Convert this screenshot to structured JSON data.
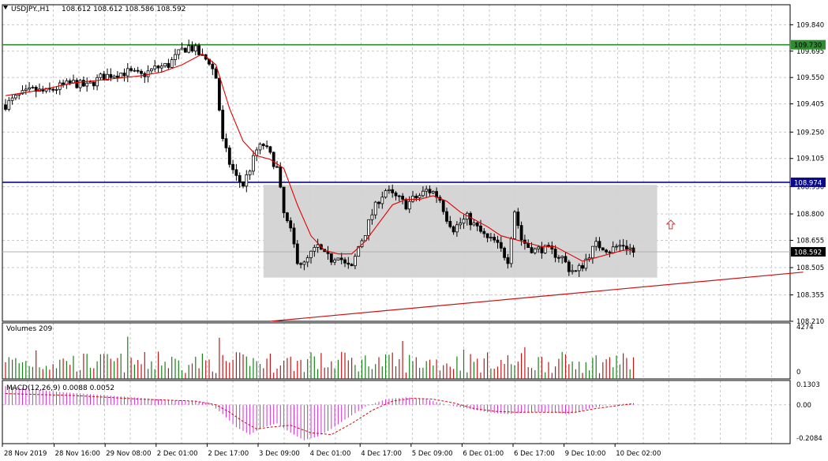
{
  "header": {
    "symbol": "USDJPY.,H1",
    "ohlc": "108.612 108.612 108.586 108.592",
    "icon": "collapse-triangle-icon"
  },
  "colors": {
    "background": "#ffffff",
    "grid": "#c8c8c8",
    "candle": "#000000",
    "ma": "#e60000",
    "resistance": "#2e8b2e",
    "support": "#0a0a8c",
    "trend": "#cc1111",
    "box": "#d3d3d3",
    "vol_up": "#1a7f1a",
    "vol_down": "#c01818",
    "macd": "#cc33cc",
    "signal": "#cc1111"
  },
  "chart_data": [
    {
      "type": "candlestick",
      "name": "price",
      "ylim": [
        108.21,
        109.95
      ],
      "y_ticks": [
        "109.840",
        "109.695",
        "109.550",
        "109.405",
        "109.250",
        "109.105",
        "108.950",
        "108.800",
        "108.655",
        "108.505",
        "108.355",
        "108.210"
      ],
      "x_labels": [
        "28 Nov 2019",
        "28 Nov 16:00",
        "29 Nov 08:00",
        "2 Dec 01:00",
        "2 Dec 17:00",
        "3 Dec 09:00",
        "4 Dec 01:00",
        "4 Dec 17:00",
        "5 Dec 09:00",
        "6 Dec 01:00",
        "6 Dec 17:00",
        "9 Dec 10:00",
        "10 Dec 02:00"
      ],
      "close_path": [
        [
          0,
          109.4
        ],
        [
          4,
          109.45
        ],
        [
          8,
          109.48
        ],
        [
          12,
          109.47
        ],
        [
          16,
          109.5
        ],
        [
          20,
          109.52
        ],
        [
          24,
          109.5
        ],
        [
          28,
          109.55
        ],
        [
          32,
          109.57
        ],
        [
          36,
          109.58
        ],
        [
          40,
          109.56
        ],
        [
          44,
          109.6
        ],
        [
          48,
          109.62
        ],
        [
          50,
          109.66
        ],
        [
          52,
          109.7
        ],
        [
          54,
          109.72
        ],
        [
          56,
          109.7
        ],
        [
          58,
          109.66
        ],
        [
          60,
          109.64
        ],
        [
          62,
          109.55
        ],
        [
          64,
          109.2
        ],
        [
          66,
          109.08
        ],
        [
          68,
          109.0
        ],
        [
          70,
          108.96
        ],
        [
          72,
          109.05
        ],
        [
          74,
          109.15
        ],
        [
          76,
          109.18
        ],
        [
          78,
          109.12
        ],
        [
          80,
          109.05
        ],
        [
          82,
          108.8
        ],
        [
          84,
          108.7
        ],
        [
          86,
          108.55
        ],
        [
          88,
          108.52
        ],
        [
          90,
          108.58
        ],
        [
          92,
          108.62
        ],
        [
          94,
          108.57
        ],
        [
          96,
          108.55
        ],
        [
          98,
          108.58
        ],
        [
          100,
          108.52
        ],
        [
          102,
          108.5
        ],
        [
          104,
          108.62
        ],
        [
          106,
          108.7
        ],
        [
          108,
          108.8
        ],
        [
          110,
          108.88
        ],
        [
          112,
          108.93
        ],
        [
          114,
          108.9
        ],
        [
          116,
          108.88
        ],
        [
          118,
          108.85
        ],
        [
          120,
          108.88
        ],
        [
          122,
          108.9
        ],
        [
          124,
          108.93
        ],
        [
          126,
          108.92
        ],
        [
          128,
          108.88
        ],
        [
          130,
          108.78
        ],
        [
          132,
          108.72
        ],
        [
          134,
          108.75
        ],
        [
          136,
          108.78
        ],
        [
          138,
          108.74
        ],
        [
          140,
          108.7
        ],
        [
          142,
          108.66
        ],
        [
          144,
          108.65
        ],
        [
          146,
          108.6
        ],
        [
          148,
          108.55
        ],
        [
          150,
          108.82
        ],
        [
          152,
          108.66
        ],
        [
          154,
          108.62
        ],
        [
          156,
          108.6
        ],
        [
          158,
          108.61
        ],
        [
          160,
          108.6
        ],
        [
          162,
          108.58
        ],
        [
          164,
          108.56
        ],
        [
          166,
          108.5
        ],
        [
          168,
          108.48
        ],
        [
          170,
          108.52
        ],
        [
          172,
          108.58
        ],
        [
          174,
          108.63
        ],
        [
          176,
          108.62
        ],
        [
          178,
          108.6
        ],
        [
          180,
          108.62
        ],
        [
          182,
          108.63
        ],
        [
          184,
          108.61
        ],
        [
          185,
          108.59
        ]
      ],
      "ma_path": [
        [
          0,
          109.45
        ],
        [
          10,
          109.48
        ],
        [
          20,
          109.52
        ],
        [
          30,
          109.54
        ],
        [
          40,
          109.56
        ],
        [
          46,
          109.58
        ],
        [
          52,
          109.62
        ],
        [
          58,
          109.68
        ],
        [
          62,
          109.62
        ],
        [
          66,
          109.38
        ],
        [
          70,
          109.2
        ],
        [
          74,
          109.12
        ],
        [
          78,
          109.1
        ],
        [
          82,
          109.05
        ],
        [
          86,
          108.85
        ],
        [
          90,
          108.68
        ],
        [
          94,
          108.6
        ],
        [
          98,
          108.58
        ],
        [
          102,
          108.58
        ],
        [
          106,
          108.65
        ],
        [
          110,
          108.75
        ],
        [
          114,
          108.85
        ],
        [
          118,
          108.88
        ],
        [
          122,
          108.88
        ],
        [
          126,
          108.9
        ],
        [
          130,
          108.87
        ],
        [
          134,
          108.81
        ],
        [
          138,
          108.77
        ],
        [
          142,
          108.73
        ],
        [
          146,
          108.68
        ],
        [
          150,
          108.66
        ],
        [
          154,
          108.64
        ],
        [
          158,
          108.62
        ],
        [
          162,
          108.62
        ],
        [
          166,
          108.58
        ],
        [
          170,
          108.54
        ],
        [
          174,
          108.56
        ],
        [
          178,
          108.58
        ],
        [
          182,
          108.6
        ],
        [
          185,
          108.6
        ]
      ],
      "candle_count": 186,
      "resistance_level": 109.73,
      "support_level": 108.974,
      "current_price": 108.592,
      "price_labels": [
        "109.730",
        "108.974",
        "108.592"
      ],
      "range_box": {
        "x_start": 76,
        "x_end": 192,
        "y_top": 108.96,
        "y_bottom": 108.45
      },
      "trend_line": {
        "from": [
          78,
          108.21
        ],
        "to": [
          235,
          108.48
        ]
      },
      "arrow_marker": {
        "x": 196,
        "y": 108.74,
        "icon": "up-arrow-icon"
      }
    },
    {
      "type": "bar",
      "name": "volumes",
      "title": "Volumes 209",
      "y_ticks": [
        "4274",
        "0"
      ],
      "ylim": [
        0,
        4274
      ],
      "bar_count": 186
    },
    {
      "type": "bar",
      "name": "macd",
      "title": "MACD(12,26,9) 0.0088 0.0052",
      "y_ticks": [
        "0.1303",
        "0.00",
        "-0.2084"
      ],
      "ylim": [
        -0.2084,
        0.1303
      ],
      "macd_path": [
        [
          0,
          0.1
        ],
        [
          15,
          0.07
        ],
        [
          30,
          0.05
        ],
        [
          45,
          0.03
        ],
        [
          55,
          0.02
        ],
        [
          60,
          0.01
        ],
        [
          64,
          -0.05
        ],
        [
          68,
          -0.12
        ],
        [
          72,
          -0.16
        ],
        [
          76,
          -0.12
        ],
        [
          80,
          -0.1
        ],
        [
          84,
          -0.15
        ],
        [
          88,
          -0.19
        ],
        [
          92,
          -0.17
        ],
        [
          96,
          -0.13
        ],
        [
          100,
          -0.08
        ],
        [
          106,
          -0.01
        ],
        [
          112,
          0.03
        ],
        [
          118,
          0.04
        ],
        [
          124,
          0.03
        ],
        [
          130,
          0.0
        ],
        [
          136,
          -0.02
        ],
        [
          142,
          -0.04
        ],
        [
          148,
          -0.05
        ],
        [
          154,
          -0.04
        ],
        [
          160,
          -0.04
        ],
        [
          166,
          -0.05
        ],
        [
          172,
          -0.02
        ],
        [
          178,
          0.0
        ],
        [
          185,
          0.0088
        ]
      ],
      "signal_path": [
        [
          0,
          0.06
        ],
        [
          20,
          0.05
        ],
        [
          40,
          0.03
        ],
        [
          56,
          0.02
        ],
        [
          62,
          0.0
        ],
        [
          66,
          -0.04
        ],
        [
          70,
          -0.09
        ],
        [
          74,
          -0.13
        ],
        [
          78,
          -0.12
        ],
        [
          84,
          -0.11
        ],
        [
          90,
          -0.15
        ],
        [
          96,
          -0.16
        ],
        [
          102,
          -0.1
        ],
        [
          108,
          -0.03
        ],
        [
          114,
          0.02
        ],
        [
          120,
          0.035
        ],
        [
          126,
          0.03
        ],
        [
          132,
          0.01
        ],
        [
          138,
          -0.02
        ],
        [
          144,
          -0.035
        ],
        [
          150,
          -0.04
        ],
        [
          156,
          -0.04
        ],
        [
          162,
          -0.04
        ],
        [
          168,
          -0.04
        ],
        [
          174,
          -0.02
        ],
        [
          180,
          -0.005
        ],
        [
          185,
          0.0052
        ]
      ]
    }
  ]
}
